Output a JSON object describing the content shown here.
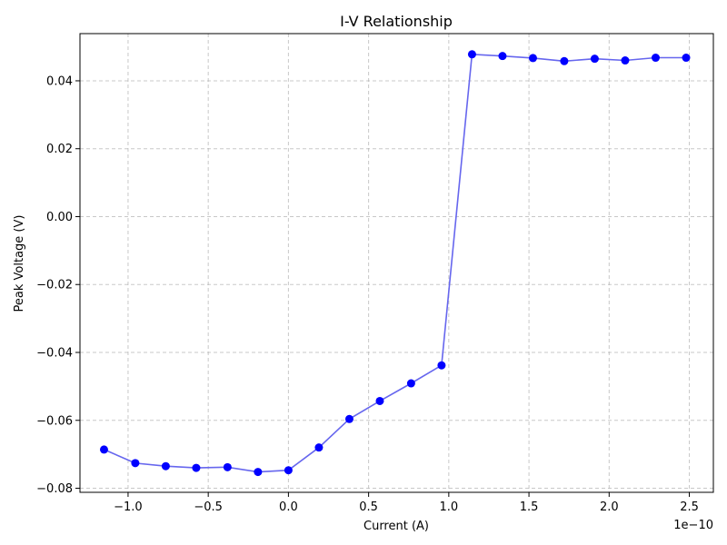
{
  "chart_data": {
    "type": "line",
    "title": "I-V Relationship",
    "xlabel": "Current (A)",
    "ylabel": "Peak Voltage (V)",
    "x_offset_label": "1e−10",
    "xlim": [
      -1.3,
      2.65
    ],
    "ylim": [
      -0.0812,
      0.0539
    ],
    "x_ticks": [
      -1.0,
      -0.5,
      0.0,
      0.5,
      1.0,
      1.5,
      2.0,
      2.5
    ],
    "x_tick_labels": [
      "−1.0",
      "−0.5",
      "0.0",
      "0.5",
      "1.0",
      "1.5",
      "2.0",
      "2.5"
    ],
    "y_ticks": [
      -0.08,
      -0.06,
      -0.04,
      -0.02,
      0.0,
      0.02,
      0.04
    ],
    "y_tick_labels": [
      "−0.08",
      "−0.06",
      "−0.04",
      "−0.02",
      "0.00",
      "0.02",
      "0.04"
    ],
    "grid": true,
    "series": [
      {
        "color": "#0000ff",
        "line_color": "#6666ee",
        "marker": "circle",
        "x": [
          -1.15,
          -0.955,
          -0.765,
          -0.575,
          -0.38,
          -0.19,
          0.0,
          0.19,
          0.38,
          0.57,
          0.765,
          0.955,
          1.145,
          1.335,
          1.525,
          1.72,
          1.91,
          2.1,
          2.29,
          2.48
        ],
        "y": [
          -0.0686,
          -0.0726,
          -0.0735,
          -0.074,
          -0.0738,
          -0.0752,
          -0.0747,
          -0.068,
          -0.0596,
          -0.0543,
          -0.0491,
          -0.0438,
          0.0478,
          0.0473,
          0.0467,
          0.0458,
          0.0465,
          0.046,
          0.0468,
          0.0468
        ]
      }
    ]
  }
}
